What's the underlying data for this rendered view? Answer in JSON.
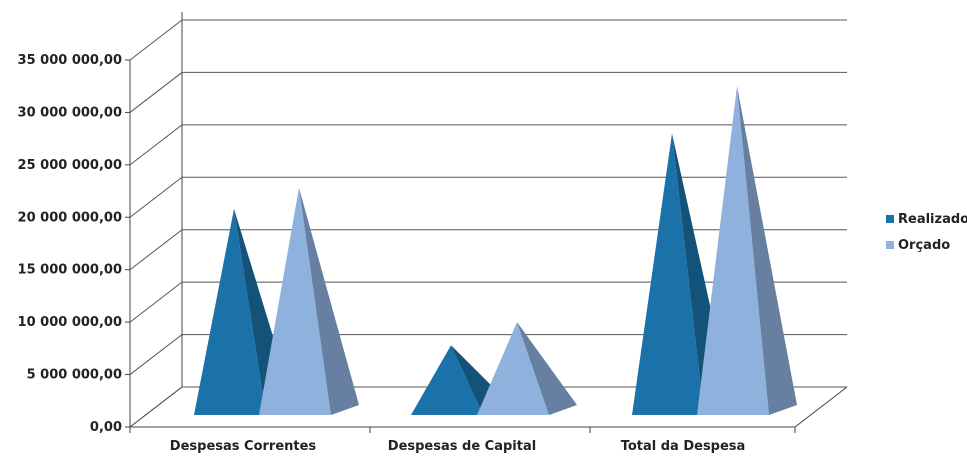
{
  "chart_data": {
    "type": "bar",
    "style": "3d-pyramid",
    "categories": [
      "Despesas Correntes",
      "Despesas de Capital",
      "Total da Despesa"
    ],
    "series": [
      {
        "name": "Realizado",
        "color": "#1a72a8",
        "values": [
          20800000,
          7800000,
          28000000
        ]
      },
      {
        "name": "Orçado",
        "color": "#8fb1de",
        "values": [
          22800000,
          10000000,
          32500000
        ]
      }
    ],
    "y_ticks": [
      "0,00",
      "5 000 000,00",
      "10 000 000,00",
      "15 000 000,00",
      "20 000 000,00",
      "25 000 000,00",
      "30 000 000,00",
      "35 000 000,00"
    ],
    "ylim": [
      0,
      35000000
    ],
    "grid": true,
    "legend_position": "right"
  }
}
